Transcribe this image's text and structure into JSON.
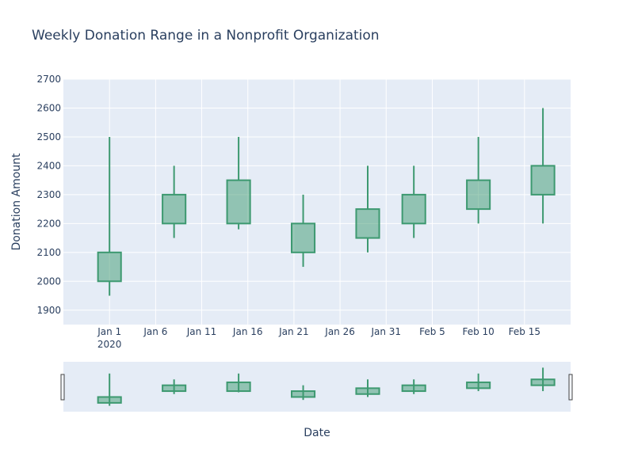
{
  "chart_data": {
    "type": "candlestick",
    "title": "Weekly Donation Range in a Nonprofit Organization",
    "xlabel": "Date",
    "ylabel": "Donation Amount",
    "x_dates": [
      "2020-01-01",
      "2020-01-08",
      "2020-01-15",
      "2020-01-22",
      "2020-01-29",
      "2020-02-03",
      "2020-02-10",
      "2020-02-17"
    ],
    "series": [
      {
        "open": [
          2000,
          2200,
          2200,
          2100,
          2150,
          2200,
          2250,
          2300
        ],
        "high": [
          2500,
          2400,
          2500,
          2300,
          2400,
          2400,
          2500,
          2600
        ],
        "low": [
          1950,
          2150,
          2180,
          2050,
          2100,
          2150,
          2200,
          2200
        ],
        "close": [
          2100,
          2300,
          2350,
          2200,
          2250,
          2300,
          2350,
          2400
        ]
      }
    ],
    "ylim": [
      1850,
      2700
    ],
    "y_ticks": [
      1900,
      2000,
      2100,
      2200,
      2300,
      2400,
      2500,
      2600,
      2700
    ],
    "xlim": [
      "2019-12-27",
      "2020-02-20"
    ],
    "x_ticks": [
      {
        "date": "2020-01-01",
        "label": "Jan 1",
        "sublabel": "2020"
      },
      {
        "date": "2020-01-06",
        "label": "Jan 6"
      },
      {
        "date": "2020-01-11",
        "label": "Jan 11"
      },
      {
        "date": "2020-01-16",
        "label": "Jan 16"
      },
      {
        "date": "2020-01-21",
        "label": "Jan 21"
      },
      {
        "date": "2020-01-26",
        "label": "Jan 26"
      },
      {
        "date": "2020-01-31",
        "label": "Jan 31"
      },
      {
        "date": "2020-02-05",
        "label": "Feb 5"
      },
      {
        "date": "2020-02-10",
        "label": "Feb 10"
      },
      {
        "date": "2020-02-15",
        "label": "Feb 15"
      }
    ],
    "grid": true,
    "rangeslider": true,
    "colors": {
      "increasing": "#3d9970",
      "increasing_fill": "rgba(61,153,112,0.5)",
      "plot_bg": "#e5ecf6",
      "grid": "#ffffff",
      "text": "#2a3f5f"
    }
  }
}
